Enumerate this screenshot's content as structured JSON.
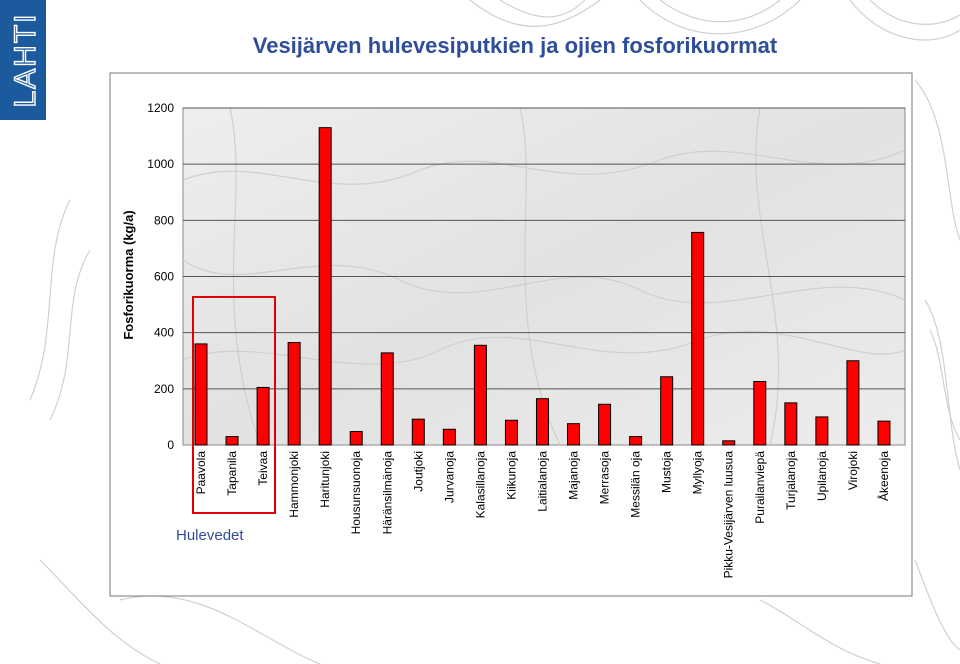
{
  "logo": {
    "text": "LAHTI",
    "color": "#1c5a9e"
  },
  "chart_data": {
    "type": "bar",
    "title": "Vesijärven hulevesiputkien ja ojien fosforikuormat",
    "ylabel": "Fosforikuorma (kg/a)",
    "xlabel": "",
    "ylim": [
      0,
      1200
    ],
    "yticks": [
      0,
      200,
      400,
      600,
      800,
      1000,
      1200
    ],
    "grid": true,
    "bar_color": "#ff0000",
    "categories": [
      "Paavola",
      "Tapanila",
      "Teivaa",
      "Hammonjoki",
      "Haritunjoki",
      "Housunsuonoja",
      "Häränsilmänoja",
      "Joutjoki",
      "Jurvanoja",
      "Kalasillanoja",
      "Kiikunoja",
      "Laitialanoja",
      "Majanoja",
      "Merrasoja",
      "Messilän oja",
      "Mustoja",
      "Myllyoja",
      "Pikku-Vesijärven luusua",
      "Purailanviepä",
      "Turjalanoja",
      "Upilanoja",
      "Virojoki",
      "Åkeenoja"
    ],
    "values": [
      360,
      30,
      205,
      365,
      1130,
      48,
      328,
      92,
      56,
      355,
      88,
      165,
      76,
      145,
      30,
      243,
      757,
      15,
      226,
      150,
      100,
      300,
      85
    ],
    "annotations": [
      {
        "text": "Hulevedet",
        "color": "#e00000",
        "covers": [
          "Paavola",
          "Tapanila",
          "Teivaa"
        ]
      }
    ]
  }
}
